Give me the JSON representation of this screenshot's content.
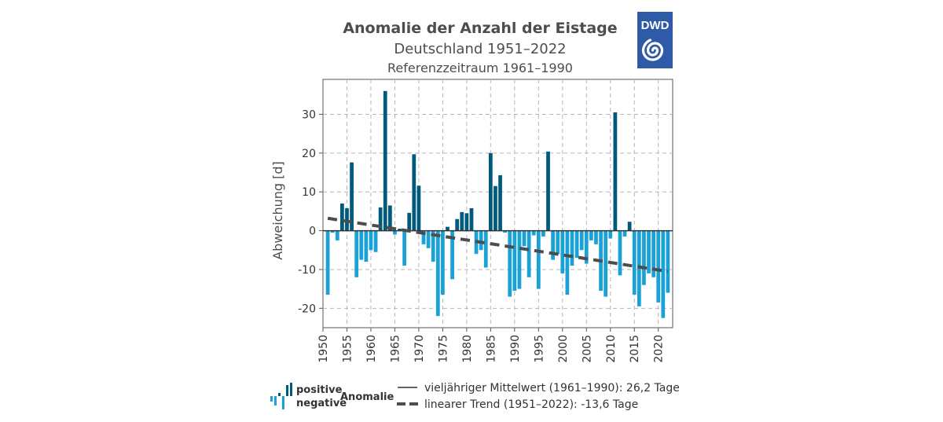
{
  "chart_data": {
    "type": "bar",
    "title": "Anomalie der Anzahl der Eistage",
    "subtitle": "Deutschland 1951–2022",
    "subtitle2": "Referenzzeitraum 1961–1990",
    "ylabel": "Abweichung [d]",
    "xlabel": "",
    "xlim": [
      1950,
      2023
    ],
    "ylim": [
      -25,
      39
    ],
    "yticks": [
      -20,
      -10,
      0,
      10,
      20,
      30
    ],
    "xticks": [
      1950,
      1955,
      1960,
      1965,
      1970,
      1975,
      1980,
      1985,
      1990,
      1995,
      2000,
      2005,
      2010,
      2015,
      2020
    ],
    "grid": true,
    "years": [
      1951,
      1952,
      1953,
      1954,
      1955,
      1956,
      1957,
      1958,
      1959,
      1960,
      1961,
      1962,
      1963,
      1964,
      1965,
      1966,
      1967,
      1968,
      1969,
      1970,
      1971,
      1972,
      1973,
      1974,
      1975,
      1976,
      1977,
      1978,
      1979,
      1980,
      1981,
      1982,
      1983,
      1984,
      1985,
      1986,
      1987,
      1988,
      1989,
      1990,
      1991,
      1992,
      1993,
      1994,
      1995,
      1996,
      1997,
      1998,
      1999,
      2000,
      2001,
      2002,
      2003,
      2004,
      2005,
      2006,
      2007,
      2008,
      2009,
      2010,
      2011,
      2012,
      2013,
      2014,
      2015,
      2016,
      2017,
      2018,
      2019,
      2020,
      2021,
      2022
    ],
    "values": [
      -16.5,
      -0.5,
      -2.5,
      7,
      5.8,
      17.6,
      -12,
      -7.5,
      -8,
      -5,
      -5.5,
      6,
      36,
      6.5,
      -1,
      0.5,
      -9,
      4.6,
      19.7,
      11.6,
      -3.5,
      -4.5,
      -8,
      -22,
      -16.5,
      1,
      -12.5,
      3,
      4.8,
      4.5,
      5.8,
      -6,
      -5,
      -9.5,
      20,
      11.5,
      14.3,
      -0.5,
      -17,
      -15.5,
      -15,
      -4,
      -12,
      -1.2,
      -15,
      -1.5,
      20.4,
      -7.5,
      -6,
      -11,
      -16.5,
      -9,
      -7,
      -5,
      -8.5,
      -2.5,
      -3.5,
      -15.5,
      -17,
      -2,
      30.5,
      -11.5,
      -1.5,
      2.3,
      -16.5,
      -19.5,
      -14,
      -11,
      -12,
      -18.5,
      -22.5,
      -16
    ],
    "colors": {
      "positive": "#005a7c",
      "negative": "#1aa1d6",
      "trend": "#4d4d4d",
      "mean": "#333333"
    },
    "trend": {
      "start_year": 1951,
      "start_value": 3.2,
      "end_year": 2022,
      "end_value": -10.5
    },
    "legend": {
      "positive": "positive",
      "negative": "negative",
      "anomaly": "Anomalie",
      "mean": "vieljähriger Mittelwert  (1961–1990): 26,2 Tage",
      "trend": "linearer Trend (1951–2022): -13,6 Tage"
    }
  },
  "logo": {
    "text": "DWD",
    "color": "#2f5aa8"
  }
}
